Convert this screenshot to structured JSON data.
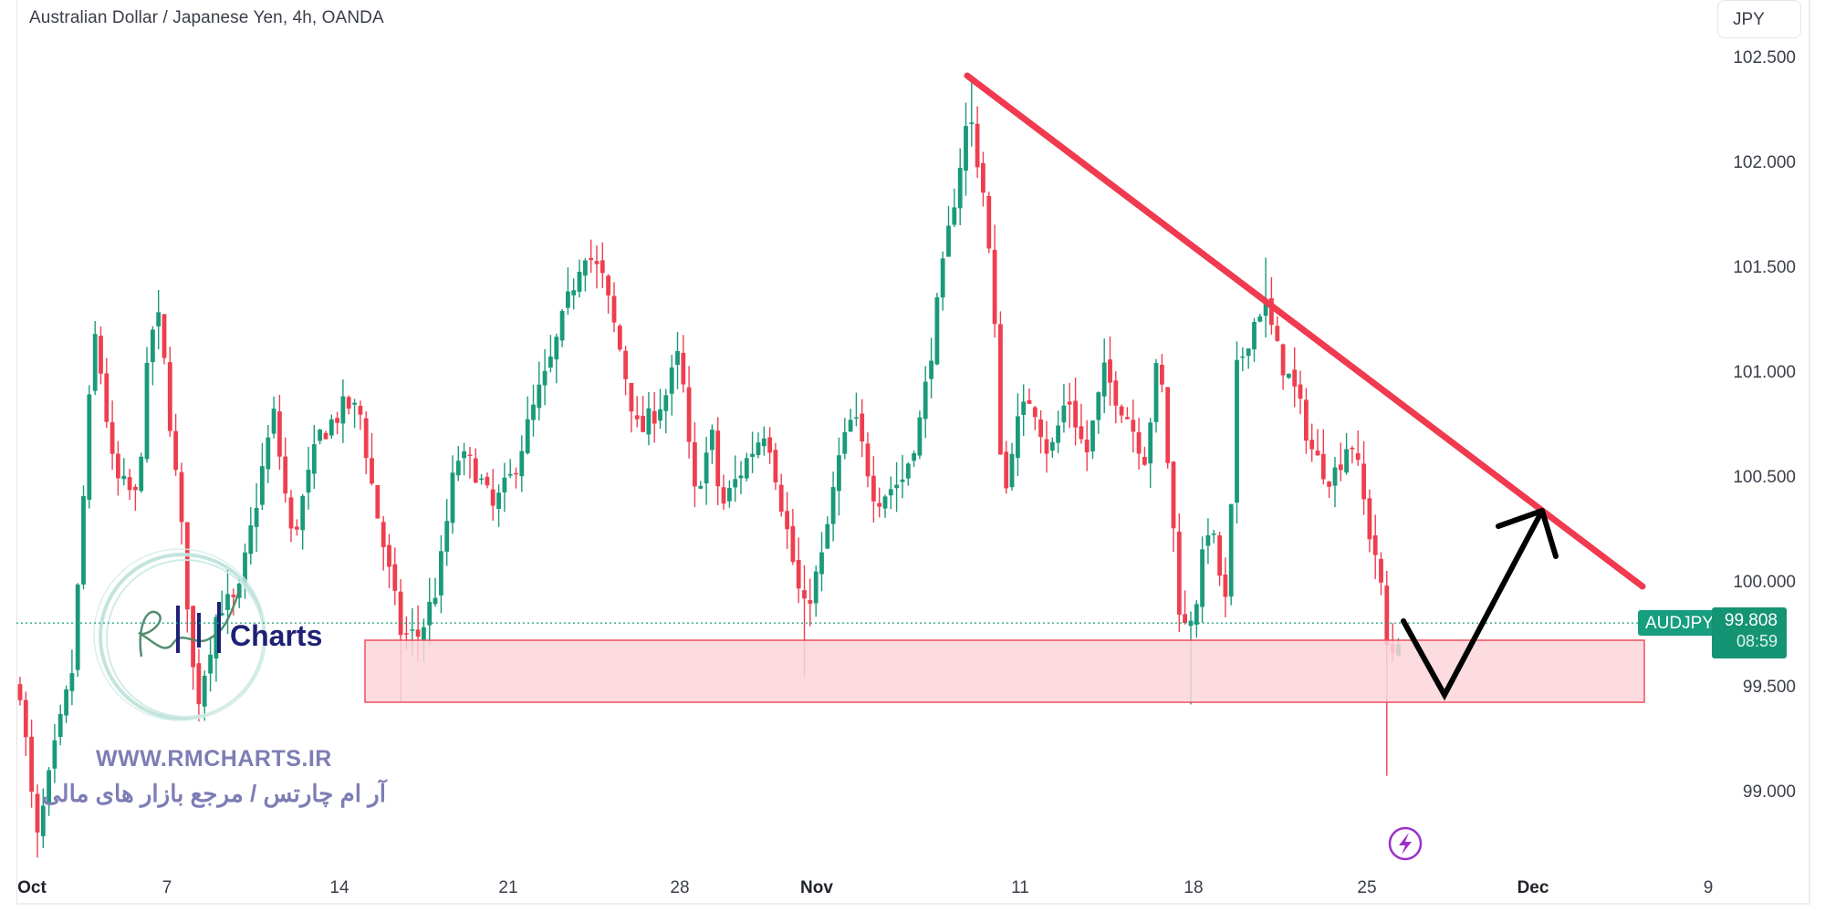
{
  "header": {
    "title": "Australian Dollar / Japanese Yen, 4h, OANDA",
    "currency": "JPY"
  },
  "price_axis": {
    "labels": [
      "102.500",
      "102.000",
      "101.500",
      "101.000",
      "100.500",
      "100.000",
      "99.500",
      "99.000"
    ]
  },
  "time_axis": {
    "labels": [
      {
        "text": "Oct",
        "bold": true
      },
      {
        "text": "7",
        "bold": false
      },
      {
        "text": "14",
        "bold": false
      },
      {
        "text": "21",
        "bold": false
      },
      {
        "text": "28",
        "bold": false
      },
      {
        "text": "Nov",
        "bold": true
      },
      {
        "text": "11",
        "bold": false
      },
      {
        "text": "18",
        "bold": false
      },
      {
        "text": "25",
        "bold": false
      },
      {
        "text": "Dec",
        "bold": true
      },
      {
        "text": "9",
        "bold": false
      }
    ]
  },
  "last_price": {
    "symbol": "AUDJPY",
    "value": "99.808",
    "countdown": "08:59"
  },
  "watermark": {
    "brand": "Charts",
    "url": "WWW.RMCHARTS.IR",
    "tagline_fa": "آر ام چارتس / مرجع بازار های مالی"
  },
  "colors": {
    "up": "#1a9a7b",
    "down": "#ee3f4f",
    "trendline": "#f03a4f",
    "zone_fill": "#fbd6da",
    "zone_border": "#ee4f5f",
    "arrow": "#000000",
    "last_price_bg": "#149473",
    "tv_logo": "#9b2fc9"
  },
  "chart_data": {
    "type": "candlestick",
    "title": "Australian Dollar / Japanese Yen, 4h, OANDA",
    "symbol": "AUDJPY",
    "timeframe": "4h",
    "ylabel": "JPY",
    "ylim": [
      98.6,
      102.6
    ],
    "yticks": [
      99.0,
      99.5,
      100.0,
      100.5,
      101.0,
      101.5,
      102.0,
      102.5
    ],
    "xticks": [
      "Oct",
      "7",
      "14",
      "21",
      "28",
      "Nov",
      "11",
      "18",
      "25",
      "Dec",
      "9"
    ],
    "last_price": 99.808,
    "approx_close_path": [
      {
        "date": "Oct 1",
        "close": 99.5
      },
      {
        "date": "Oct 2",
        "close": 98.8,
        "low": 98.69
      },
      {
        "date": "Oct 4",
        "close": 101.2,
        "high": 101.28
      },
      {
        "date": "Oct 7",
        "close": 100.5
      },
      {
        "date": "Oct 8",
        "close": 101.3,
        "high": 101.45
      },
      {
        "date": "Oct 9",
        "close": 99.4,
        "low": 99.1
      },
      {
        "date": "Oct 11",
        "close": 99.9
      },
      {
        "date": "Oct 14",
        "close": 100.8
      },
      {
        "date": "Oct 15",
        "close": 100.2
      },
      {
        "date": "Oct 16",
        "close": 99.7,
        "low": 99.45
      },
      {
        "date": "Oct 18",
        "close": 100.0
      },
      {
        "date": "Oct 21",
        "close": 100.6
      },
      {
        "date": "Oct 23",
        "close": 101.6,
        "high": 101.7
      },
      {
        "date": "Oct 25",
        "close": 100.7
      },
      {
        "date": "Oct 28",
        "close": 101.1
      },
      {
        "date": "Oct 30",
        "close": 100.3
      },
      {
        "date": "Nov 1",
        "close": 99.8,
        "low": 99.55
      },
      {
        "date": "Nov 4",
        "close": 100.8
      },
      {
        "date": "Nov 6",
        "close": 100.5
      },
      {
        "date": "Nov 8",
        "close": 102.3,
        "high": 102.42
      },
      {
        "date": "Nov 11",
        "close": 100.3
      },
      {
        "date": "Nov 13",
        "close": 100.9
      },
      {
        "date": "Nov 15",
        "close": 101.0
      },
      {
        "date": "Nov 18",
        "close": 99.7,
        "low": 99.42
      },
      {
        "date": "Nov 20",
        "close": 101.4,
        "high": 101.55
      },
      {
        "date": "Nov 22",
        "close": 100.6
      },
      {
        "date": "Nov 25",
        "close": 100.5,
        "high": 101.03
      },
      {
        "date": "Nov 26",
        "close": 99.6,
        "low": 99.08
      },
      {
        "date": "Nov 27",
        "close": 99.808
      }
    ],
    "annotations": [
      {
        "type": "trendline",
        "color": "red",
        "from": {
          "date": "Nov 8",
          "price": 102.42
        },
        "to": {
          "date": "Dec 6",
          "price": 99.98
        },
        "label": "descending resistance"
      },
      {
        "type": "rectangle",
        "color": "pink",
        "price_top": 99.72,
        "price_bottom": 99.42,
        "from": "Oct 15",
        "to": "Dec 6",
        "label": "support zone"
      },
      {
        "type": "arrow_path",
        "color": "black",
        "points": [
          {
            "price": 99.81
          },
          {
            "price": 99.46
          },
          {
            "price": 100.34
          }
        ],
        "label": "projected dip then rally to trendline"
      }
    ]
  }
}
